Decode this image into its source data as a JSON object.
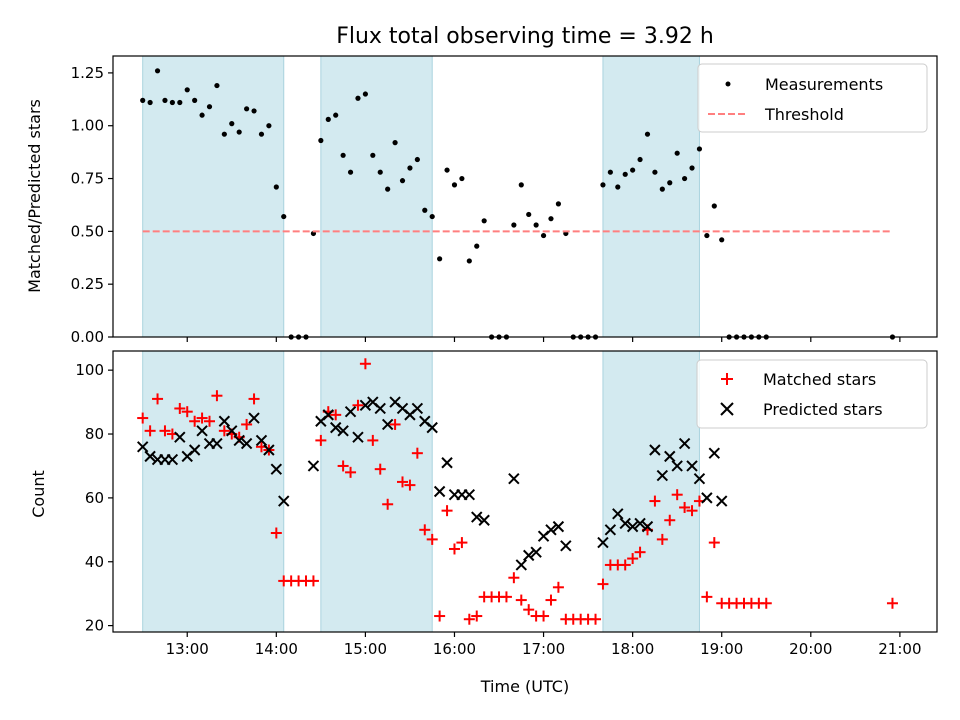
{
  "chart_data": [
    {
      "type": "scatter",
      "title": "Flux total observing time = 3.92 h",
      "ylabel": "Matched/Predicted stars",
      "xlabel": "",
      "xlim": [
        "12:10",
        "21:25"
      ],
      "ylim": [
        0,
        1.33
      ],
      "x_ticks": [
        "13:00",
        "14:00",
        "15:00",
        "16:00",
        "17:00",
        "18:00",
        "19:00",
        "20:00",
        "21:00"
      ],
      "y_ticks": [
        "0.00",
        "0.25",
        "0.50",
        "0.75",
        "1.00",
        "1.25"
      ],
      "legend": "top-right",
      "shaded_intervals": [
        [
          "12:30",
          "14:05"
        ],
        [
          "14:30",
          "15:45"
        ],
        [
          "17:40",
          "18:45"
        ]
      ],
      "shade_color": "#d3eaf0",
      "series": [
        {
          "name": "Measurements",
          "color": "#000000",
          "marker": "dot",
          "points": [
            [
              "12:30",
              1.12
            ],
            [
              "12:35",
              1.11
            ],
            [
              "12:40",
              1.26
            ],
            [
              "12:45",
              1.12
            ],
            [
              "12:50",
              1.11
            ],
            [
              "12:55",
              1.11
            ],
            [
              "13:00",
              1.17
            ],
            [
              "13:05",
              1.12
            ],
            [
              "13:10",
              1.05
            ],
            [
              "13:15",
              1.09
            ],
            [
              "13:20",
              1.19
            ],
            [
              "13:25",
              0.96
            ],
            [
              "13:30",
              1.01
            ],
            [
              "13:35",
              0.97
            ],
            [
              "13:40",
              1.08
            ],
            [
              "13:45",
              1.07
            ],
            [
              "13:50",
              0.96
            ],
            [
              "13:55",
              1.0
            ],
            [
              "14:00",
              0.71
            ],
            [
              "14:05",
              0.57
            ],
            [
              "14:10",
              0.0
            ],
            [
              "14:15",
              0.0
            ],
            [
              "14:20",
              0.0
            ],
            [
              "14:25",
              0.49
            ],
            [
              "14:30",
              0.93
            ],
            [
              "14:35",
              1.03
            ],
            [
              "14:40",
              1.05
            ],
            [
              "14:45",
              0.86
            ],
            [
              "14:50",
              0.78
            ],
            [
              "14:55",
              1.13
            ],
            [
              "15:00",
              1.15
            ],
            [
              "15:05",
              0.86
            ],
            [
              "15:10",
              0.78
            ],
            [
              "15:15",
              0.7
            ],
            [
              "15:20",
              0.92
            ],
            [
              "15:25",
              0.74
            ],
            [
              "15:30",
              0.8
            ],
            [
              "15:35",
              0.84
            ],
            [
              "15:40",
              0.6
            ],
            [
              "15:45",
              0.57
            ],
            [
              "15:50",
              0.37
            ],
            [
              "15:55",
              0.79
            ],
            [
              "16:00",
              0.72
            ],
            [
              "16:05",
              0.75
            ],
            [
              "16:10",
              0.36
            ],
            [
              "16:15",
              0.43
            ],
            [
              "16:20",
              0.55
            ],
            [
              "16:25",
              0.0
            ],
            [
              "16:30",
              0.0
            ],
            [
              "16:35",
              0.0
            ],
            [
              "16:40",
              0.53
            ],
            [
              "16:45",
              0.72
            ],
            [
              "16:50",
              0.58
            ],
            [
              "16:55",
              0.53
            ],
            [
              "17:00",
              0.48
            ],
            [
              "17:05",
              0.56
            ],
            [
              "17:10",
              0.63
            ],
            [
              "17:15",
              0.49
            ],
            [
              "17:20",
              0.0
            ],
            [
              "17:25",
              0.0
            ],
            [
              "17:30",
              0.0
            ],
            [
              "17:35",
              0.0
            ],
            [
              "17:40",
              0.72
            ],
            [
              "17:45",
              0.78
            ],
            [
              "17:50",
              0.71
            ],
            [
              "17:55",
              0.77
            ],
            [
              "18:00",
              0.79
            ],
            [
              "18:05",
              0.84
            ],
            [
              "18:10",
              0.96
            ],
            [
              "18:15",
              0.78
            ],
            [
              "18:20",
              0.7
            ],
            [
              "18:25",
              0.73
            ],
            [
              "18:30",
              0.87
            ],
            [
              "18:35",
              0.75
            ],
            [
              "18:40",
              0.8
            ],
            [
              "18:45",
              0.89
            ],
            [
              "18:50",
              0.48
            ],
            [
              "18:55",
              0.62
            ],
            [
              "19:00",
              0.46
            ],
            [
              "19:05",
              0.0
            ],
            [
              "19:10",
              0.0
            ],
            [
              "19:15",
              0.0
            ],
            [
              "19:20",
              0.0
            ],
            [
              "19:25",
              0.0
            ],
            [
              "19:30",
              0.0
            ],
            [
              "20:55",
              0.0
            ]
          ]
        },
        {
          "name": "Threshold",
          "color": "#ff7f7f",
          "marker": "dashed-line",
          "points": [
            [
              "12:30",
              0.5
            ],
            [
              "20:55",
              0.5
            ]
          ]
        }
      ]
    },
    {
      "type": "scatter",
      "title": "",
      "ylabel": "Count",
      "xlabel": "Time (UTC)",
      "xlim": [
        "12:10",
        "21:25"
      ],
      "ylim": [
        18,
        106
      ],
      "x_ticks": [
        "13:00",
        "14:00",
        "15:00",
        "16:00",
        "17:00",
        "18:00",
        "19:00",
        "20:00",
        "21:00"
      ],
      "y_ticks": [
        "20",
        "40",
        "60",
        "80",
        "100"
      ],
      "legend": "top-right",
      "shaded_intervals": [
        [
          "12:30",
          "14:05"
        ],
        [
          "14:30",
          "15:45"
        ],
        [
          "17:40",
          "18:45"
        ]
      ],
      "shade_color": "#d3eaf0",
      "series": [
        {
          "name": "Matched stars",
          "color": "#ff0000",
          "marker": "plus",
          "points": [
            [
              "12:30",
              85
            ],
            [
              "12:35",
              81
            ],
            [
              "12:40",
              91
            ],
            [
              "12:45",
              81
            ],
            [
              "12:50",
              80
            ],
            [
              "12:55",
              88
            ],
            [
              "13:00",
              87
            ],
            [
              "13:05",
              84
            ],
            [
              "13:10",
              85
            ],
            [
              "13:15",
              84
            ],
            [
              "13:20",
              92
            ],
            [
              "13:25",
              81
            ],
            [
              "13:30",
              80
            ],
            [
              "13:35",
              79
            ],
            [
              "13:40",
              83
            ],
            [
              "13:45",
              91
            ],
            [
              "13:50",
              76
            ],
            [
              "13:55",
              75
            ],
            [
              "14:00",
              49
            ],
            [
              "14:05",
              34
            ],
            [
              "14:10",
              34
            ],
            [
              "14:15",
              34
            ],
            [
              "14:20",
              34
            ],
            [
              "14:25",
              34
            ],
            [
              "14:30",
              78
            ],
            [
              "14:35",
              87
            ],
            [
              "14:40",
              86
            ],
            [
              "14:45",
              70
            ],
            [
              "14:50",
              68
            ],
            [
              "14:55",
              89
            ],
            [
              "15:00",
              102
            ],
            [
              "15:05",
              78
            ],
            [
              "15:10",
              69
            ],
            [
              "15:15",
              58
            ],
            [
              "15:20",
              83
            ],
            [
              "15:25",
              65
            ],
            [
              "15:30",
              64
            ],
            [
              "15:35",
              74
            ],
            [
              "15:40",
              50
            ],
            [
              "15:45",
              47
            ],
            [
              "15:50",
              23
            ],
            [
              "15:55",
              56
            ],
            [
              "16:00",
              44
            ],
            [
              "16:05",
              46
            ],
            [
              "16:10",
              22
            ],
            [
              "16:15",
              23
            ],
            [
              "16:20",
              29
            ],
            [
              "16:25",
              29
            ],
            [
              "16:30",
              29
            ],
            [
              "16:35",
              29
            ],
            [
              "16:40",
              35
            ],
            [
              "16:45",
              28
            ],
            [
              "16:50",
              25
            ],
            [
              "16:55",
              23
            ],
            [
              "17:00",
              23
            ],
            [
              "17:05",
              28
            ],
            [
              "17:10",
              32
            ],
            [
              "17:15",
              22
            ],
            [
              "17:20",
              22
            ],
            [
              "17:25",
              22
            ],
            [
              "17:30",
              22
            ],
            [
              "17:35",
              22
            ],
            [
              "17:40",
              33
            ],
            [
              "17:45",
              39
            ],
            [
              "17:50",
              39
            ],
            [
              "17:55",
              39
            ],
            [
              "18:00",
              41
            ],
            [
              "18:05",
              43
            ],
            [
              "18:10",
              50
            ],
            [
              "18:15",
              59
            ],
            [
              "18:20",
              47
            ],
            [
              "18:25",
              53
            ],
            [
              "18:30",
              61
            ],
            [
              "18:35",
              57
            ],
            [
              "18:40",
              56
            ],
            [
              "18:45",
              59
            ],
            [
              "18:50",
              29
            ],
            [
              "18:55",
              46
            ],
            [
              "19:00",
              27
            ],
            [
              "19:05",
              27
            ],
            [
              "19:10",
              27
            ],
            [
              "19:15",
              27
            ],
            [
              "19:20",
              27
            ],
            [
              "19:25",
              27
            ],
            [
              "19:30",
              27
            ],
            [
              "20:55",
              27
            ]
          ]
        },
        {
          "name": "Predicted stars",
          "color": "#000000",
          "marker": "x",
          "points": [
            [
              "12:30",
              76
            ],
            [
              "12:35",
              73
            ],
            [
              "12:40",
              72
            ],
            [
              "12:45",
              72
            ],
            [
              "12:50",
              72
            ],
            [
              "12:55",
              79
            ],
            [
              "13:00",
              73
            ],
            [
              "13:05",
              75
            ],
            [
              "13:10",
              81
            ],
            [
              "13:15",
              77
            ],
            [
              "13:20",
              77
            ],
            [
              "13:25",
              84
            ],
            [
              "13:30",
              81
            ],
            [
              "13:35",
              78
            ],
            [
              "13:40",
              77
            ],
            [
              "13:45",
              85
            ],
            [
              "13:50",
              78
            ],
            [
              "13:55",
              75
            ],
            [
              "14:00",
              69
            ],
            [
              "14:05",
              59
            ],
            [
              "14:25",
              70
            ],
            [
              "14:30",
              84
            ],
            [
              "14:35",
              86
            ],
            [
              "14:40",
              82
            ],
            [
              "14:45",
              81
            ],
            [
              "14:50",
              87
            ],
            [
              "14:55",
              79
            ],
            [
              "15:00",
              89
            ],
            [
              "15:05",
              90
            ],
            [
              "15:10",
              88
            ],
            [
              "15:15",
              83
            ],
            [
              "15:20",
              90
            ],
            [
              "15:25",
              88
            ],
            [
              "15:30",
              86
            ],
            [
              "15:35",
              88
            ],
            [
              "15:40",
              84
            ],
            [
              "15:45",
              82
            ],
            [
              "15:50",
              62
            ],
            [
              "15:55",
              71
            ],
            [
              "16:00",
              61
            ],
            [
              "16:05",
              61
            ],
            [
              "16:10",
              61
            ],
            [
              "16:15",
              54
            ],
            [
              "16:20",
              53
            ],
            [
              "16:40",
              66
            ],
            [
              "16:45",
              39
            ],
            [
              "16:50",
              42
            ],
            [
              "16:55",
              43
            ],
            [
              "17:00",
              48
            ],
            [
              "17:05",
              50
            ],
            [
              "17:10",
              51
            ],
            [
              "17:15",
              45
            ],
            [
              "17:40",
              46
            ],
            [
              "17:45",
              50
            ],
            [
              "17:50",
              55
            ],
            [
              "17:55",
              52
            ],
            [
              "18:00",
              51
            ],
            [
              "18:05",
              52
            ],
            [
              "18:10",
              51
            ],
            [
              "18:15",
              75
            ],
            [
              "18:20",
              67
            ],
            [
              "18:25",
              73
            ],
            [
              "18:30",
              70
            ],
            [
              "18:35",
              77
            ],
            [
              "18:40",
              70
            ],
            [
              "18:45",
              66
            ],
            [
              "18:50",
              60
            ],
            [
              "18:55",
              74
            ],
            [
              "19:00",
              59
            ]
          ]
        }
      ]
    }
  ]
}
